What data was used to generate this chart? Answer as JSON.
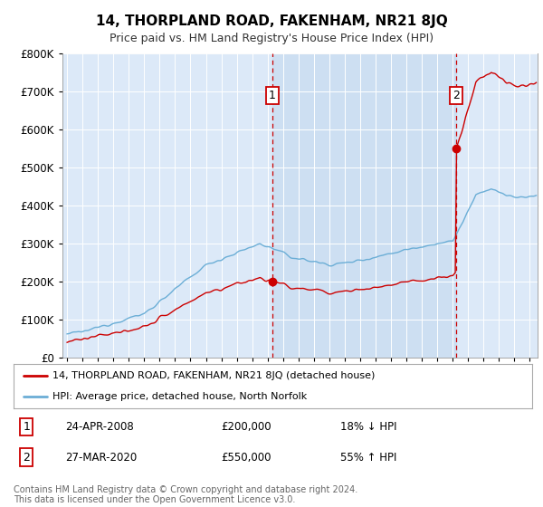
{
  "title": "14, THORPLAND ROAD, FAKENHAM, NR21 8JQ",
  "subtitle": "Price paid vs. HM Land Registry's House Price Index (HPI)",
  "legend_line1": "14, THORPLAND ROAD, FAKENHAM, NR21 8JQ (detached house)",
  "legend_line2": "HPI: Average price, detached house, North Norfolk",
  "footnote": "Contains HM Land Registry data © Crown copyright and database right 2024.\nThis data is licensed under the Open Government Licence v3.0.",
  "transaction1_date": "24-APR-2008",
  "transaction1_price": "£200,000",
  "transaction1_hpi": "18% ↓ HPI",
  "transaction2_date": "27-MAR-2020",
  "transaction2_price": "£550,000",
  "transaction2_hpi": "55% ↑ HPI",
  "transaction1_x": 2008.31,
  "transaction2_x": 2020.24,
  "transaction1_y": 200000,
  "transaction2_y": 550000,
  "ylim": [
    0,
    800000
  ],
  "xlim_start": 1994.7,
  "xlim_end": 2025.5,
  "background_color": "#dce9f8",
  "hpi_color": "#6baed6",
  "price_color": "#cc0000",
  "vline_color": "#cc0000",
  "grid_color": "#c8d8e8",
  "shade_color": "#c8d8ee"
}
